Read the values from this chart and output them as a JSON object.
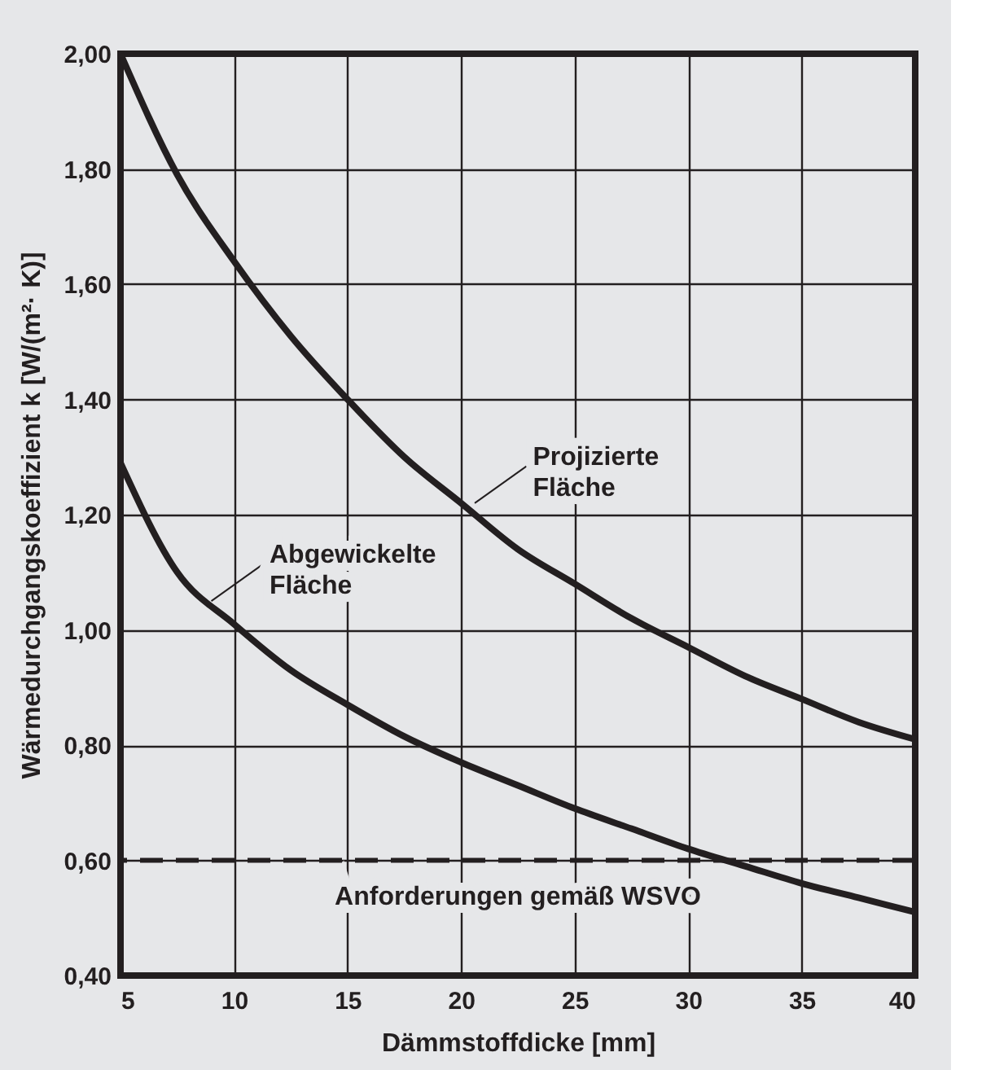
{
  "chart_data": {
    "type": "line",
    "xlabel": "Dämmstoffdicke  [mm]",
    "ylabel": "Wärmedurchgangskoeffizient  k  [W/(m²· K)]",
    "x": [
      5,
      7.5,
      10,
      12.5,
      15,
      17.5,
      20,
      22.5,
      25,
      27.5,
      30,
      32.5,
      35,
      37.5,
      40
    ],
    "series": [
      {
        "color": "#231f20",
        "values": [
          2.0,
          1.79,
          1.64,
          1.51,
          1.4,
          1.3,
          1.22,
          1.14,
          1.08,
          1.02,
          0.97,
          0.92,
          0.88,
          0.84,
          0.81
        ]
      },
      {
        "color": "#231f20",
        "values": [
          1.29,
          1.1,
          1.01,
          0.93,
          0.87,
          0.815,
          0.77,
          0.73,
          0.69,
          0.655,
          0.62,
          0.59,
          0.56,
          0.535,
          0.51
        ]
      }
    ],
    "xlim": [
      5,
      40
    ],
    "xticks": [
      5,
      10,
      15,
      20,
      25,
      30,
      35,
      40
    ],
    "ylim": [
      0.4,
      2.0
    ],
    "yticks": [
      {
        "value": 0.4,
        "label": "0,40"
      },
      {
        "value": 0.6,
        "label": "0,60"
      },
      {
        "value": 0.8,
        "label": "0,80"
      },
      {
        "value": 1.0,
        "label": "1,00"
      },
      {
        "value": 1.2,
        "label": "1,20"
      },
      {
        "value": 1.4,
        "label": "1,40"
      },
      {
        "value": 1.6,
        "label": "1,60"
      },
      {
        "value": 1.8,
        "label": "1,80"
      },
      {
        "value": 2.0,
        "label": "2,00"
      }
    ],
    "ref_lines": [
      {
        "axis": "y",
        "value": 0.6,
        "label": "Anforderungen gemäß WSVO",
        "color": "#231f20",
        "line_style": "dashed"
      }
    ],
    "annotations": [
      {
        "text": "Projizierte Fläche",
        "x": 20.6,
        "y": 1.22
      },
      {
        "text": "Abgewickelte Fläche",
        "x": 9.0,
        "y": 1.05
      }
    ],
    "grid": true,
    "line_style": "solid",
    "marker": "none",
    "legend": false
  }
}
